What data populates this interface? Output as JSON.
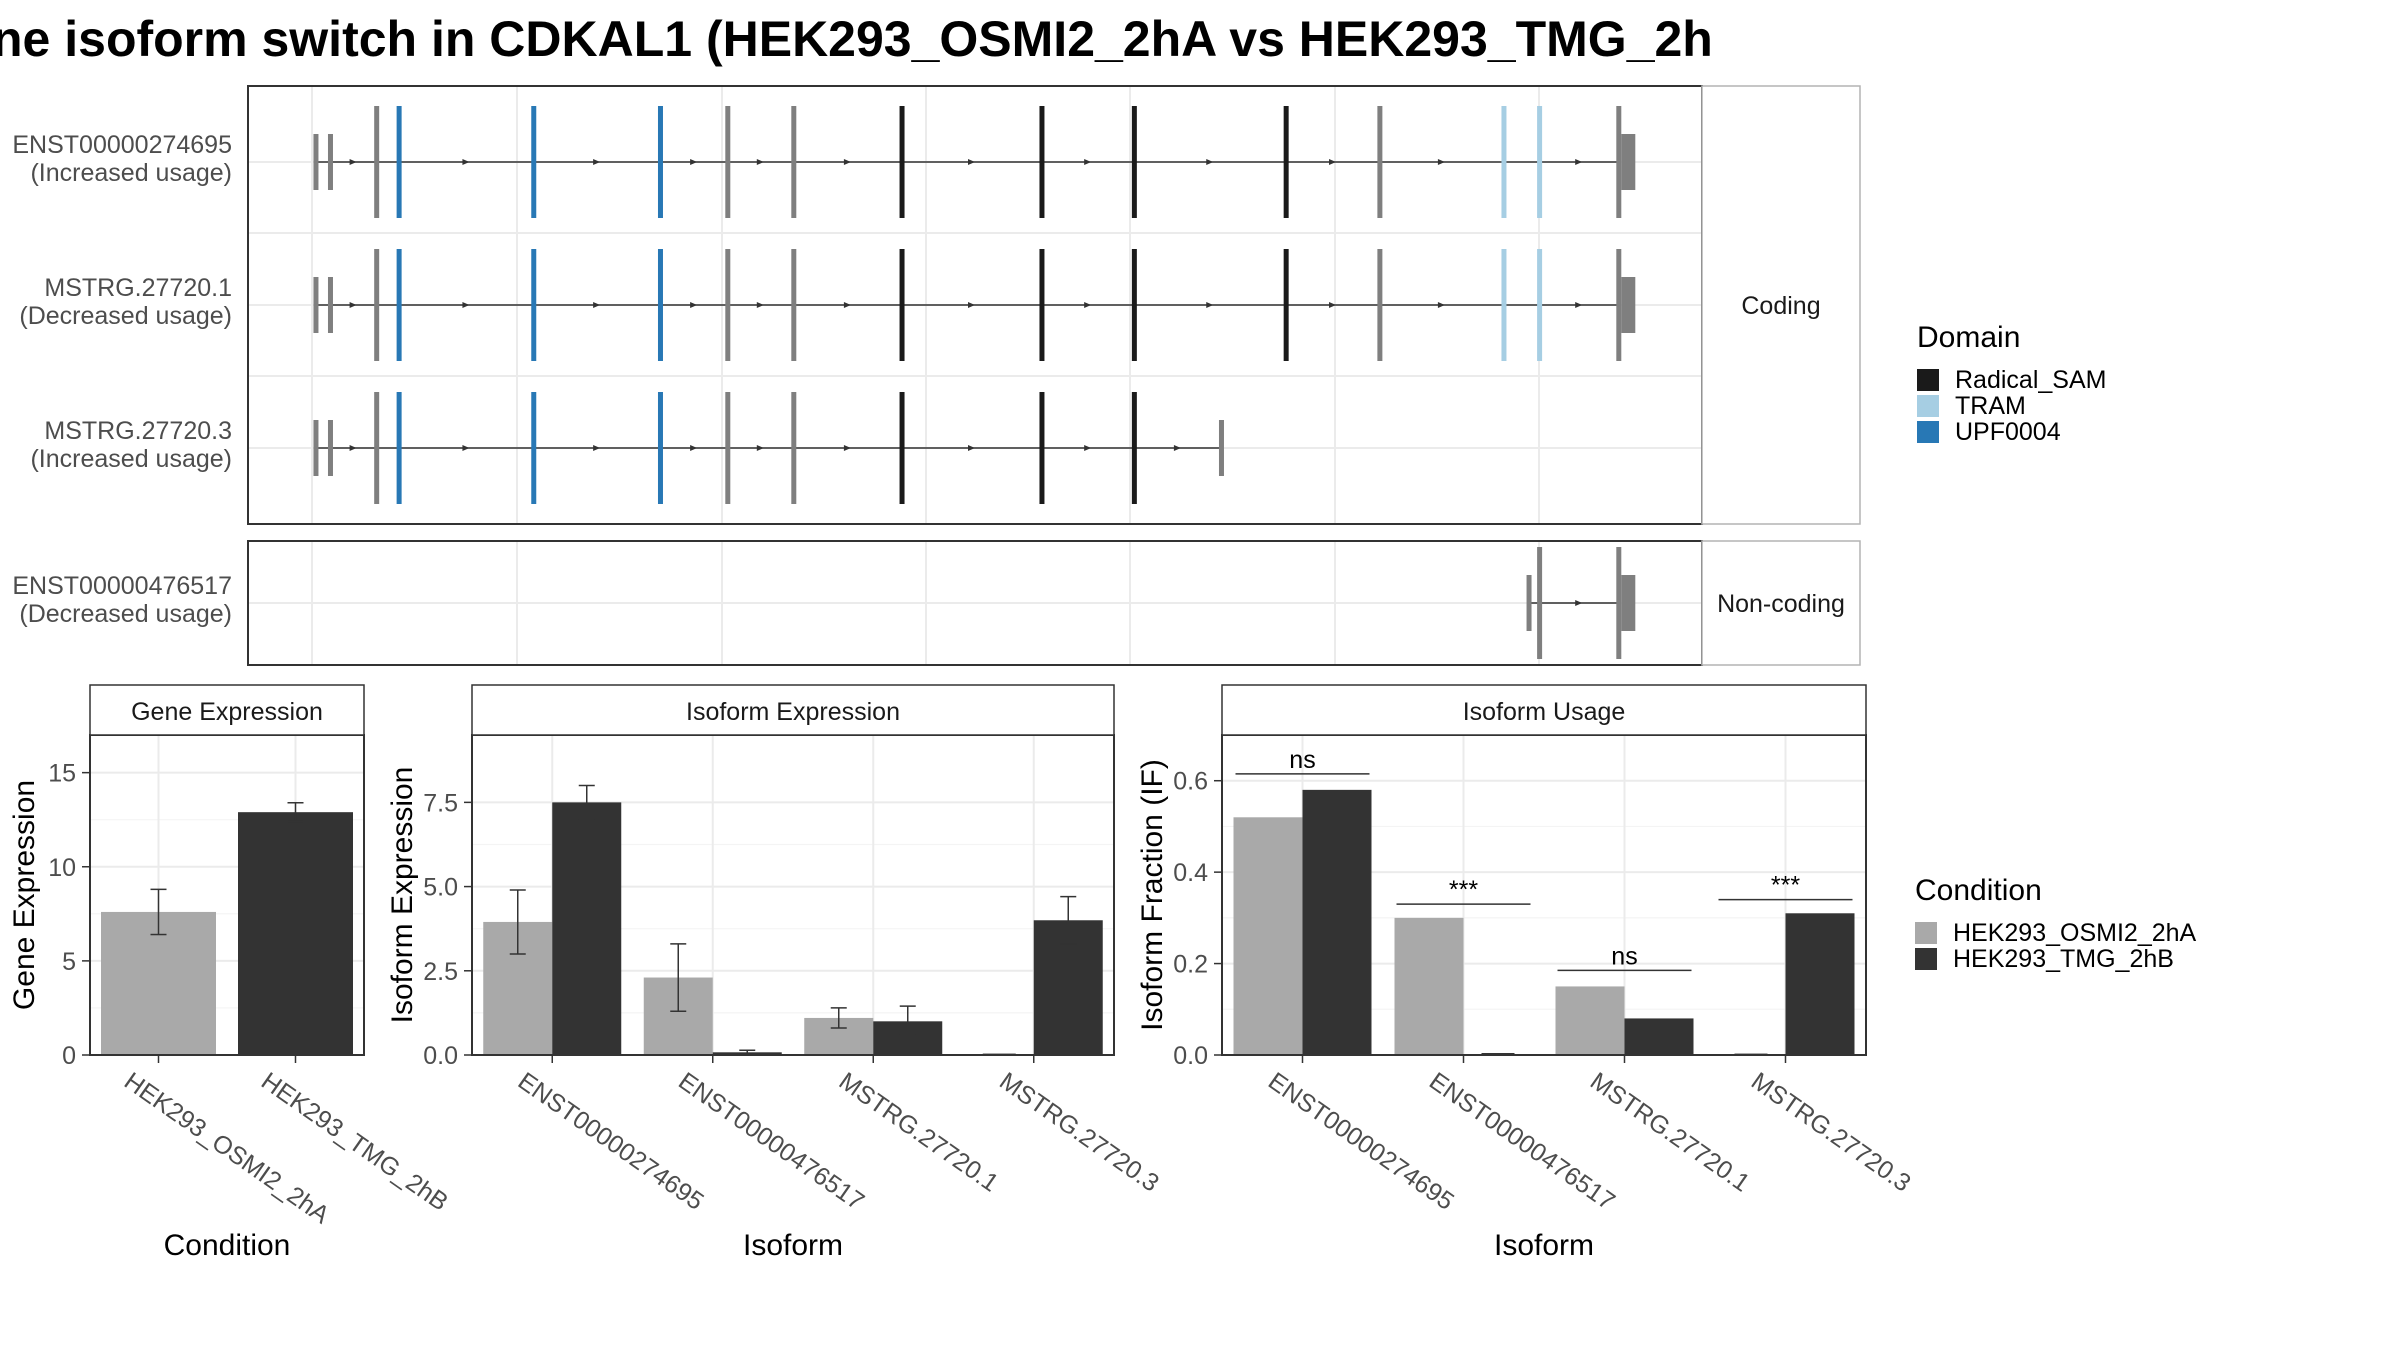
{
  "title": "ne isoform switch in CDKAL1 (HEK293_OSMI2_2hA vs HEK293_TMG_2h",
  "colors": {
    "condition_a": "#a9a9a9",
    "condition_b": "#333333",
    "domain_radical_sam": "#1a1a1a",
    "domain_tram": "#a6cee3",
    "domain_upf0004": "#2878b5",
    "exon_plain": "#7f7f7f",
    "panel_border": "#333333",
    "strip_fill": "#ffffff",
    "grid": "#ebebeb"
  },
  "transcript_panel": {
    "coord_range": [
      0,
      1000
    ],
    "coding_label": "Coding",
    "noncoding_label": "Non-coding",
    "transcripts": [
      {
        "id": "ENST00000274695",
        "usage": "(Increased usage)",
        "group": "coding",
        "exons": [
          {
            "pos": 3,
            "type": "plain",
            "size": "small"
          },
          {
            "pos": 14,
            "type": "plain",
            "size": "small"
          },
          {
            "pos": 49,
            "type": "plain"
          },
          {
            "pos": 66,
            "type": "upf0004"
          },
          {
            "pos": 168,
            "type": "upf0004"
          },
          {
            "pos": 264,
            "type": "upf0004"
          },
          {
            "pos": 315,
            "type": "plain"
          },
          {
            "pos": 365,
            "type": "plain"
          },
          {
            "pos": 447,
            "type": "radical_sam"
          },
          {
            "pos": 553,
            "type": "radical_sam"
          },
          {
            "pos": 623,
            "type": "radical_sam"
          },
          {
            "pos": 738,
            "type": "radical_sam"
          },
          {
            "pos": 809,
            "type": "plain"
          },
          {
            "pos": 903,
            "type": "tram"
          },
          {
            "pos": 930,
            "type": "tram"
          },
          {
            "pos": 990,
            "type": "plain",
            "width": 14,
            "utr": true
          }
        ],
        "end": 990
      },
      {
        "id": "MSTRG.27720.1",
        "usage": "(Decreased usage)",
        "group": "coding",
        "exons": [
          {
            "pos": 3,
            "type": "plain",
            "size": "small"
          },
          {
            "pos": 14,
            "type": "plain",
            "size": "small"
          },
          {
            "pos": 49,
            "type": "plain"
          },
          {
            "pos": 66,
            "type": "upf0004"
          },
          {
            "pos": 168,
            "type": "upf0004"
          },
          {
            "pos": 264,
            "type": "upf0004"
          },
          {
            "pos": 315,
            "type": "plain"
          },
          {
            "pos": 365,
            "type": "plain"
          },
          {
            "pos": 447,
            "type": "radical_sam"
          },
          {
            "pos": 553,
            "type": "radical_sam"
          },
          {
            "pos": 623,
            "type": "radical_sam"
          },
          {
            "pos": 738,
            "type": "radical_sam"
          },
          {
            "pos": 809,
            "type": "plain"
          },
          {
            "pos": 903,
            "type": "tram"
          },
          {
            "pos": 930,
            "type": "tram"
          },
          {
            "pos": 990,
            "type": "plain",
            "width": 14,
            "utr": true
          }
        ],
        "end": 990
      },
      {
        "id": "MSTRG.27720.3",
        "usage": "(Increased usage)",
        "group": "coding",
        "exons": [
          {
            "pos": 3,
            "type": "plain",
            "size": "small"
          },
          {
            "pos": 14,
            "type": "plain",
            "size": "small"
          },
          {
            "pos": 49,
            "type": "plain"
          },
          {
            "pos": 66,
            "type": "upf0004"
          },
          {
            "pos": 168,
            "type": "upf0004"
          },
          {
            "pos": 264,
            "type": "upf0004"
          },
          {
            "pos": 315,
            "type": "plain"
          },
          {
            "pos": 365,
            "type": "plain"
          },
          {
            "pos": 447,
            "type": "radical_sam"
          },
          {
            "pos": 553,
            "type": "radical_sam"
          },
          {
            "pos": 623,
            "type": "radical_sam"
          },
          {
            "pos": 689,
            "type": "plain",
            "size": "small"
          }
        ],
        "end": 689
      },
      {
        "id": "ENST00000476517",
        "usage": "(Decreased usage)",
        "group": "noncoding",
        "exons": [
          {
            "pos": 922,
            "type": "plain",
            "size": "small"
          },
          {
            "pos": 930,
            "type": "plain"
          },
          {
            "pos": 990,
            "type": "plain",
            "width": 14,
            "utr": true
          }
        ],
        "start": 922,
        "end": 990
      }
    ]
  },
  "legends": {
    "domain": {
      "title": "Domain",
      "items": [
        {
          "label": "Radical_SAM",
          "color": "#1a1a1a"
        },
        {
          "label": "TRAM",
          "color": "#a6cee3"
        },
        {
          "label": "UPF0004",
          "color": "#2878b5"
        }
      ]
    },
    "condition": {
      "title": "Condition",
      "items": [
        {
          "label": "HEK293_OSMI2_2hA",
          "color": "#a9a9a9"
        },
        {
          "label": "HEK293_TMG_2hB",
          "color": "#333333"
        }
      ]
    }
  },
  "chart_data": [
    {
      "type": "bar",
      "strip": "Gene Expression",
      "xlabel": "Condition",
      "ylabel": "Gene Expression",
      "ylim": [
        0,
        17
      ],
      "yticks": [
        0,
        5,
        10,
        15
      ],
      "categories": [
        "HEK293_OSMI2_2hA",
        "HEK293_TMG_2hB"
      ],
      "values": [
        7.6,
        12.9
      ],
      "errors": [
        [
          6.4,
          8.8
        ],
        [
          12.4,
          13.4
        ]
      ],
      "colors": [
        "#a9a9a9",
        "#333333"
      ]
    },
    {
      "type": "bar",
      "strip": "Isoform Expression",
      "xlabel": "Isoform",
      "ylabel": "Isoform Expression",
      "ylim": [
        0,
        9.5
      ],
      "yticks": [
        0.0,
        2.5,
        5.0,
        7.5
      ],
      "yticklabels": [
        "0.0",
        "2.5",
        "5.0",
        "7.5"
      ],
      "categories": [
        "ENST00000274695",
        "ENST00000476517",
        "MSTRG.27720.1",
        "MSTRG.27720.3"
      ],
      "series": [
        {
          "name": "HEK293_OSMI2_2hA",
          "values": [
            3.95,
            2.3,
            1.1,
            0.0
          ],
          "errors": [
            [
              3.0,
              4.9
            ],
            [
              1.3,
              3.3
            ],
            [
              0.8,
              1.4
            ],
            [
              0.0,
              0.0
            ]
          ]
        },
        {
          "name": "HEK293_TMG_2hB",
          "values": [
            7.5,
            0.08,
            1.0,
            4.0
          ],
          "errors": [
            [
              7.0,
              8.0
            ],
            [
              0.02,
              0.14
            ],
            [
              0.6,
              1.45
            ],
            [
              3.3,
              4.7
            ]
          ]
        }
      ]
    },
    {
      "type": "bar",
      "strip": "Isoform Usage",
      "xlabel": "Isoform",
      "ylabel": "Isoform Fraction (IF)",
      "ylim": [
        0,
        0.7
      ],
      "yticks": [
        0.0,
        0.2,
        0.4,
        0.6
      ],
      "yticklabels": [
        "0.0",
        "0.2",
        "0.4",
        "0.6"
      ],
      "categories": [
        "ENST00000274695",
        "ENST00000476517",
        "MSTRG.27720.1",
        "MSTRG.27720.3"
      ],
      "series": [
        {
          "name": "HEK293_OSMI2_2hA",
          "values": [
            0.52,
            0.3,
            0.15,
            0.0
          ]
        },
        {
          "name": "HEK293_TMG_2hB",
          "values": [
            0.58,
            0.003,
            0.08,
            0.31
          ]
        }
      ],
      "significance": [
        {
          "category": "ENST00000274695",
          "label": "ns",
          "y": 0.615
        },
        {
          "category": "ENST00000476517",
          "label": "***",
          "y": 0.33
        },
        {
          "category": "MSTRG.27720.1",
          "label": "ns",
          "y": 0.185
        },
        {
          "category": "MSTRG.27720.3",
          "label": "***",
          "y": 0.34
        }
      ]
    }
  ]
}
